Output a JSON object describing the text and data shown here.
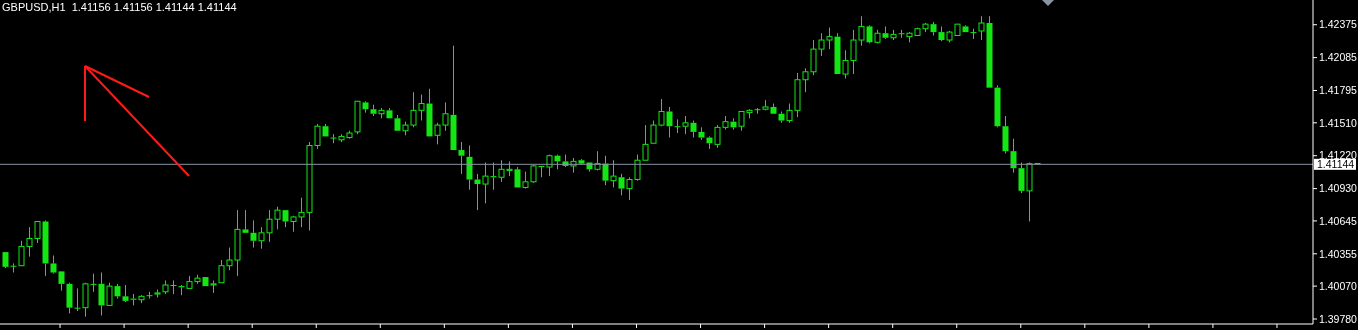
{
  "chart_data": {
    "type": "candlestick",
    "title": "GBPUSD,H1  1.41156 1.41156 1.41144 1.41144",
    "color": "#14e614",
    "categories": [
      null,
      null,
      null,
      null,
      null,
      null,
      null,
      null,
      null,
      null,
      null,
      null,
      null,
      null,
      null,
      null,
      null,
      null,
      null,
      null,
      null,
      null,
      null,
      null,
      null,
      null,
      null,
      null,
      null,
      null,
      null,
      null,
      null,
      null,
      null,
      null,
      null,
      null,
      null,
      null,
      null,
      null,
      null,
      null,
      null,
      null,
      null,
      null,
      null,
      null,
      null,
      null,
      null,
      null,
      null,
      null,
      null,
      null,
      null,
      null,
      null,
      null,
      null,
      null,
      null,
      null,
      null,
      null,
      null,
      null,
      null,
      null,
      null,
      null,
      null,
      null,
      null,
      null,
      null,
      null,
      null,
      null,
      null,
      null,
      null,
      null,
      null,
      null,
      null,
      null,
      null,
      null,
      null,
      null,
      null,
      null,
      null,
      null,
      null,
      null,
      null,
      null,
      null,
      null,
      null,
      null,
      null,
      null,
      null,
      null,
      null,
      null,
      null,
      null,
      null,
      null,
      null,
      null,
      null,
      null,
      null,
      null,
      null,
      null,
      null,
      null,
      null,
      null,
      null,
      null,
      null,
      null,
      null,
      null,
      null,
      null,
      null,
      null,
      null,
      null,
      null,
      null,
      null,
      null,
      null,
      null,
      null,
      null,
      null,
      null,
      null,
      null,
      null,
      null,
      null,
      null,
      null,
      null,
      null,
      null,
      null,
      null,
      null,
      null
    ],
    "ohlc": [
      [
        1.4037,
        1.4037,
        1.4023,
        1.4024
      ],
      [
        1.4025,
        1.4027,
        1.4019,
        1.4025
      ],
      [
        1.4025,
        1.4047,
        1.4025,
        1.4042
      ],
      [
        1.4042,
        1.4059,
        1.4033,
        1.4049
      ],
      [
        1.4049,
        1.4064,
        1.4045,
        1.4064
      ],
      [
        1.4064,
        1.4065,
        1.4016,
        1.4027
      ],
      [
        1.4027,
        1.4034,
        1.4018,
        1.4019
      ],
      [
        1.402,
        1.402,
        1.4003,
        1.4009
      ],
      [
        1.4009,
        1.401,
        1.3983,
        1.3988
      ],
      [
        1.3988,
        1.4005,
        1.3985,
        1.3988
      ],
      [
        1.3988,
        1.401,
        1.398,
        1.4009
      ],
      [
        1.4009,
        1.4018,
        1.4002,
        1.4009
      ],
      [
        1.4009,
        1.4019,
        1.3981,
        1.399
      ],
      [
        1.399,
        1.401,
        1.399,
        1.4007
      ],
      [
        1.4007,
        1.4009,
        1.3996,
        1.3998
      ],
      [
        1.3998,
        1.4008,
        1.3993,
        1.3994
      ],
      [
        1.3996,
        1.4,
        1.399,
        1.3995
      ],
      [
        1.3995,
        1.3999,
        1.3992,
        1.3998
      ],
      [
        1.3999,
        1.4002,
        1.3996,
        1.3999
      ],
      [
        1.4,
        1.4004,
        1.3997,
        1.4001
      ],
      [
        1.4002,
        1.4012,
        1.4,
        1.4008
      ],
      [
        1.4008,
        1.4012,
        1.4,
        1.4008
      ],
      [
        1.4007,
        1.4008,
        1.3999,
        1.4006
      ],
      [
        1.4005,
        1.4016,
        1.4005,
        1.4011
      ],
      [
        1.4011,
        1.4017,
        1.4009,
        1.4014
      ],
      [
        1.4015,
        1.4015,
        1.4007,
        1.4007
      ],
      [
        1.4008,
        1.4012,
        1.4001,
        1.4009
      ],
      [
        1.401,
        1.403,
        1.401,
        1.4025
      ],
      [
        1.4025,
        1.4041,
        1.4021,
        1.403
      ],
      [
        1.403,
        1.4074,
        1.4016,
        1.4057
      ],
      [
        1.4057,
        1.4074,
        1.4054,
        1.4054
      ],
      [
        1.4054,
        1.4065,
        1.4041,
        1.4047
      ],
      [
        1.4047,
        1.4059,
        1.404,
        1.4054
      ],
      [
        1.4054,
        1.4074,
        1.4046,
        1.4066
      ],
      [
        1.4066,
        1.4077,
        1.4057,
        1.4074
      ],
      [
        1.4074,
        1.4074,
        1.4059,
        1.4064
      ],
      [
        1.4064,
        1.4069,
        1.4055,
        1.4068
      ],
      [
        1.4068,
        1.4085,
        1.4059,
        1.4072
      ],
      [
        1.4072,
        1.4134,
        1.4056,
        1.4131
      ],
      [
        1.4131,
        1.415,
        1.4128,
        1.4148
      ],
      [
        1.4148,
        1.415,
        1.4139,
        1.4139
      ],
      [
        1.4138,
        1.4141,
        1.4133,
        1.4138
      ],
      [
        1.4136,
        1.4141,
        1.4134,
        1.4139
      ],
      [
        1.4138,
        1.4144,
        1.4137,
        1.4142
      ],
      [
        1.4143,
        1.417,
        1.4141,
        1.417
      ],
      [
        1.4169,
        1.417,
        1.416,
        1.4163
      ],
      [
        1.4163,
        1.4167,
        1.4157,
        1.4159
      ],
      [
        1.4159,
        1.4164,
        1.4155,
        1.4162
      ],
      [
        1.4162,
        1.4164,
        1.4155,
        1.4155
      ],
      [
        1.4155,
        1.4158,
        1.4144,
        1.4144
      ],
      [
        1.4144,
        1.4152,
        1.414,
        1.4149
      ],
      [
        1.4149,
        1.4178,
        1.4147,
        1.4162
      ],
      [
        1.4162,
        1.4176,
        1.4153,
        1.4168
      ],
      [
        1.4168,
        1.4181,
        1.4139,
        1.4139
      ],
      [
        1.414,
        1.4151,
        1.4132,
        1.4149
      ],
      [
        1.4149,
        1.4169,
        1.4144,
        1.4159
      ],
      [
        1.4158,
        1.4219,
        1.4127,
        1.4127
      ],
      [
        1.4127,
        1.4134,
        1.4106,
        1.4122
      ],
      [
        1.4121,
        1.4131,
        1.4092,
        1.4101
      ],
      [
        1.4101,
        1.4106,
        1.4074,
        1.4097
      ],
      [
        1.4097,
        1.4116,
        1.408,
        1.4104
      ],
      [
        1.4104,
        1.4116,
        1.4092,
        1.4103
      ],
      [
        1.4103,
        1.4118,
        1.4099,
        1.411
      ],
      [
        1.4109,
        1.4117,
        1.4104,
        1.411
      ],
      [
        1.411,
        1.4112,
        1.4094,
        1.4094
      ],
      [
        1.4094,
        1.4108,
        1.4093,
        1.4099
      ],
      [
        1.4099,
        1.4114,
        1.4098,
        1.4113
      ],
      [
        1.4113,
        1.4113,
        1.4103,
        1.4112
      ],
      [
        1.4112,
        1.4123,
        1.4104,
        1.4122
      ],
      [
        1.4122,
        1.4123,
        1.411,
        1.4117
      ],
      [
        1.4117,
        1.4123,
        1.4112,
        1.4113
      ],
      [
        1.4113,
        1.412,
        1.4107,
        1.4117
      ],
      [
        1.4118,
        1.4119,
        1.4114,
        1.4115
      ],
      [
        1.4116,
        1.4116,
        1.4108,
        1.411
      ],
      [
        1.411,
        1.4126,
        1.4109,
        1.4115
      ],
      [
        1.4115,
        1.4122,
        1.4096,
        1.41
      ],
      [
        1.41,
        1.4118,
        1.4094,
        1.4104
      ],
      [
        1.4103,
        1.4106,
        1.4087,
        1.4093
      ],
      [
        1.4093,
        1.4103,
        1.4083,
        1.4101
      ],
      [
        1.4101,
        1.4123,
        1.41,
        1.4118
      ],
      [
        1.4118,
        1.4149,
        1.4118,
        1.4132
      ],
      [
        1.4133,
        1.4153,
        1.4133,
        1.4149
      ],
      [
        1.4149,
        1.4172,
        1.4148,
        1.4161
      ],
      [
        1.4161,
        1.4165,
        1.4138,
        1.4148
      ],
      [
        1.4148,
        1.4154,
        1.4142,
        1.4148
      ],
      [
        1.4148,
        1.4157,
        1.4141,
        1.4151
      ],
      [
        1.4151,
        1.4153,
        1.4138,
        1.4143
      ],
      [
        1.4143,
        1.4147,
        1.4136,
        1.4138
      ],
      [
        1.4138,
        1.4139,
        1.4128,
        1.4133
      ],
      [
        1.4132,
        1.4149,
        1.4129,
        1.4147
      ],
      [
        1.4147,
        1.4157,
        1.4145,
        1.4152
      ],
      [
        1.4152,
        1.4155,
        1.4145,
        1.4147
      ],
      [
        1.4148,
        1.4161,
        1.4144,
        1.4161
      ],
      [
        1.416,
        1.4163,
        1.4155,
        1.4162
      ],
      [
        1.4163,
        1.4164,
        1.4159,
        1.4163
      ],
      [
        1.4163,
        1.4171,
        1.4162,
        1.4165
      ],
      [
        1.4165,
        1.4168,
        1.4159,
        1.4159
      ],
      [
        1.4159,
        1.4161,
        1.4151,
        1.4153
      ],
      [
        1.4153,
        1.4168,
        1.4151,
        1.4162
      ],
      [
        1.4162,
        1.4195,
        1.4156,
        1.4189
      ],
      [
        1.4189,
        1.4199,
        1.4178,
        1.4196
      ],
      [
        1.4196,
        1.4224,
        1.4193,
        1.4216
      ],
      [
        1.4216,
        1.423,
        1.421,
        1.4224
      ],
      [
        1.4224,
        1.4235,
        1.4216,
        1.4227
      ],
      [
        1.4227,
        1.423,
        1.4194,
        1.4194
      ],
      [
        1.4194,
        1.4215,
        1.419,
        1.4206
      ],
      [
        1.4206,
        1.4233,
        1.4194,
        1.4224
      ],
      [
        1.4224,
        1.4245,
        1.4219,
        1.4236
      ],
      [
        1.4236,
        1.4237,
        1.4221,
        1.4222
      ],
      [
        1.4222,
        1.4233,
        1.4221,
        1.423
      ],
      [
        1.423,
        1.4236,
        1.4225,
        1.4226
      ],
      [
        1.4226,
        1.4233,
        1.4224,
        1.4229
      ],
      [
        1.423,
        1.4233,
        1.4226,
        1.423
      ],
      [
        1.4227,
        1.4231,
        1.4222,
        1.423
      ],
      [
        1.4228,
        1.4235,
        1.4228,
        1.4234
      ],
      [
        1.4234,
        1.4239,
        1.4231,
        1.4238
      ],
      [
        1.4238,
        1.424,
        1.4228,
        1.4231
      ],
      [
        1.4231,
        1.4236,
        1.4223,
        1.4224
      ],
      [
        1.4224,
        1.4232,
        1.4222,
        1.4231
      ],
      [
        1.4228,
        1.4238,
        1.4228,
        1.4238
      ],
      [
        1.4236,
        1.4237,
        1.4231,
        1.4231
      ],
      [
        1.4231,
        1.4234,
        1.4225,
        1.4231
      ],
      [
        1.4232,
        1.4245,
        1.4224,
        1.4239
      ],
      [
        1.4239,
        1.4245,
        1.4182,
        1.4182
      ],
      [
        1.4182,
        1.4184,
        1.4147,
        1.4148
      ],
      [
        1.4148,
        1.4157,
        1.4124,
        1.4126
      ],
      [
        1.4126,
        1.4137,
        1.4107,
        1.4111
      ],
      [
        1.4111,
        1.4116,
        1.4089,
        1.4091
      ],
      [
        1.4091,
        1.4116,
        1.4064,
        1.4115
      ],
      [
        1.41156,
        1.41156,
        1.41144,
        1.41144
      ],
      null,
      null,
      null,
      null,
      null,
      null,
      null,
      null,
      null,
      null,
      null,
      null,
      null,
      null,
      null,
      null,
      null,
      null,
      null,
      null,
      null,
      null,
      null,
      null,
      null,
      null,
      null,
      null,
      null,
      null,
      null,
      null,
      null,
      null
    ],
    "ylim": [
      1.39736,
      1.42593
    ],
    "yticks": [
      {
        "value": 1.3978,
        "label": "1.39780"
      },
      {
        "value": 1.4007,
        "label": "1.40070"
      },
      1.40355,
      1.40645,
      {
        "value": 1.4093,
        "label": "1.40930"
      },
      {
        "value": 1.4122,
        "label": "1.41220"
      },
      {
        "value": 1.4151,
        "label": "1.41510"
      },
      1.41795,
      1.42085,
      1.42375
    ],
    "ref_lines": [
      {
        "axis": "y",
        "value": 1.41144,
        "label": "1.41144",
        "color": "#8a94a3"
      }
    ],
    "tick_labels": "y"
  }
}
